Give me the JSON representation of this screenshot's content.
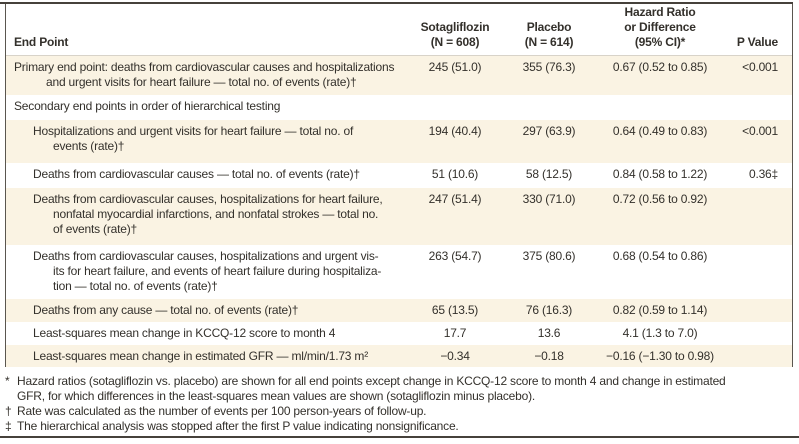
{
  "table": {
    "header": {
      "endpoint": "End Point",
      "sotagliflozin": [
        "Sotagliflozin",
        "(N = 608)"
      ],
      "placebo": [
        "Placebo",
        "(N = 614)"
      ],
      "hazard_ratio": [
        "Hazard Ratio",
        "or Difference",
        "(95% CI)*"
      ],
      "p_value": "P Value"
    },
    "rows": [
      {
        "endpoint_lines": [
          "Primary end point: deaths from cardiovascular causes and hospitalizations",
          "and urgent visits for heart failure — total no. of events (rate)†"
        ],
        "sotagliflozin": "245 (51.0)",
        "placebo": "355 (76.3)",
        "hazard_ratio": "0.67 (0.52 to 0.85)",
        "p_value": "<0.001"
      },
      {
        "endpoint_lines": [
          "Secondary end points in order of hierarchical testing"
        ],
        "sotagliflozin": "",
        "placebo": "",
        "hazard_ratio": "",
        "p_value": ""
      },
      {
        "endpoint_lines": [
          "Hospitalizations and urgent visits for heart failure — total no. of",
          "events (rate)†"
        ],
        "sotagliflozin": "194 (40.4)",
        "placebo": "297 (63.9)",
        "hazard_ratio": "0.64 (0.49 to 0.83)",
        "p_value": "<0.001"
      },
      {
        "endpoint_lines": [
          "Deaths from cardiovascular causes — total no. of events (rate)†"
        ],
        "sotagliflozin": "51 (10.6)",
        "placebo": "58 (12.5)",
        "hazard_ratio": "0.84 (0.58 to 1.22)",
        "p_value": "0.36‡"
      },
      {
        "endpoint_lines": [
          "Deaths from cardiovascular causes, hospitalizations for heart failure,",
          "nonfatal myocardial infarctions, and nonfatal strokes — total no.",
          "of events (rate)†"
        ],
        "sotagliflozin": "247 (51.4)",
        "placebo": "330 (71.0)",
        "hazard_ratio": "0.72 (0.56 to 0.92)",
        "p_value": ""
      },
      {
        "endpoint_lines": [
          "Deaths from cardiovascular causes, hospitalizations and urgent vis-",
          "its for heart failure, and events of heart failure during hospitaliza-",
          "tion — total no. of events (rate)†"
        ],
        "sotagliflozin": "263 (54.7)",
        "placebo": "375 (80.6)",
        "hazard_ratio": "0.68 (0.54 to 0.86)",
        "p_value": ""
      },
      {
        "endpoint_lines": [
          "Deaths from any cause — total no. of events (rate)†"
        ],
        "sotagliflozin": "65 (13.5)",
        "placebo": "76 (16.3)",
        "hazard_ratio": "0.82 (0.59 to 1.14)",
        "p_value": ""
      },
      {
        "endpoint_lines": [
          "Least-squares mean change in KCCQ-12 score to month 4"
        ],
        "sotagliflozin": "17.7",
        "placebo": "13.6",
        "hazard_ratio": "4.1 (1.3 to 7.0)",
        "p_value": ""
      },
      {
        "endpoint_lines": [
          "Least-squares mean change in estimated GFR — ml/min/1.73 m²"
        ],
        "sotagliflozin": "−0.34",
        "placebo": "−0.18",
        "hazard_ratio": "−0.16 (−1.30 to 0.98)",
        "p_value": ""
      }
    ],
    "footnotes": [
      {
        "marker": "*",
        "lines": [
          "Hazard ratios (sotagliflozin vs. placebo) are shown for all end points except change in KCCQ-12 score to month 4 and change in estimated",
          "GFR, for which differences in the least-squares mean values are shown (sotagliflozin minus placebo)."
        ]
      },
      {
        "marker": "†",
        "lines": [
          "Rate was calculated as the number of events per 100 person-years of follow-up."
        ]
      },
      {
        "marker": "‡",
        "lines": [
          "The hierarchical analysis was stopped after the first P value indicating nonsignificance."
        ]
      }
    ],
    "colors": {
      "row_stripe": "#FAF3E3",
      "rule": "#46413B",
      "border": "#5A564F",
      "text": "#33302B"
    }
  }
}
